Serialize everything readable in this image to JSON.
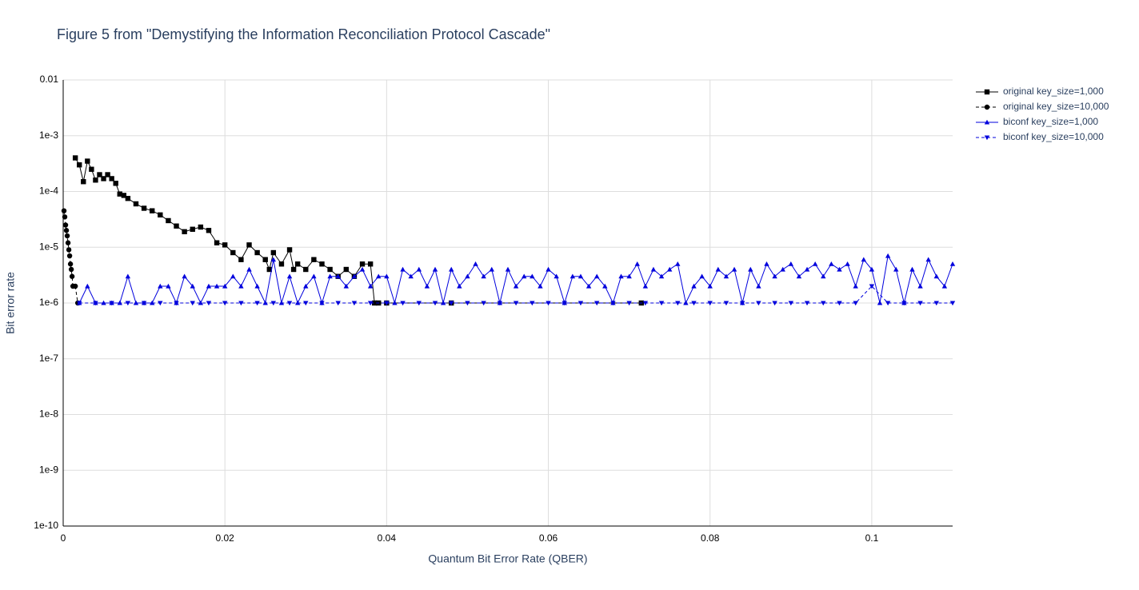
{
  "chart_data": {
    "type": "line",
    "title": "Figure 5 from \"Demystifying the Information Reconciliation Protocol Cascade\"",
    "xlabel": "Quantum Bit Error Rate (QBER)",
    "ylabel": "Bit error rate",
    "log_y": true,
    "grid": true,
    "legend": "outside-right",
    "xlim": [
      0,
      0.11
    ],
    "xticks": [
      0,
      0.02,
      0.04,
      0.06,
      0.08,
      0.1
    ],
    "ylim": [
      1e-10,
      0.01
    ],
    "yticks": [
      {
        "value": 1e-10,
        "label": "1e-10"
      },
      {
        "value": 1e-09,
        "label": "1e-9"
      },
      {
        "value": 1e-08,
        "label": "1e-8"
      },
      {
        "value": 1e-07,
        "label": "1e-7"
      },
      {
        "value": 1e-06,
        "label": "1e-6"
      },
      {
        "value": 1e-05,
        "label": "1e-5"
      },
      {
        "value": 0.0001,
        "label": "1e-4"
      },
      {
        "value": 0.001,
        "label": "1e-3"
      },
      0.01
    ],
    "series": [
      {
        "name": "original key_size=1,000",
        "color": "#000000",
        "dash": "solid",
        "marker": "square",
        "x": [
          0.0015,
          0.002,
          0.0025,
          0.003,
          0.0035,
          0.004,
          0.0045,
          0.005,
          0.0055,
          0.006,
          0.0065,
          0.007,
          0.0075,
          0.008,
          0.009,
          0.01,
          0.011,
          0.012,
          0.013,
          0.014,
          0.015,
          0.016,
          0.017,
          0.018,
          0.019,
          0.02,
          0.021,
          0.022,
          0.023,
          0.024,
          0.025,
          0.0255,
          0.026,
          0.027,
          0.028,
          0.0285,
          0.029,
          0.03,
          0.031,
          0.032,
          0.033,
          0.034,
          0.035,
          0.036,
          0.037,
          0.038,
          0.0385,
          0.039,
          0.04,
          0.048,
          0.0715
        ],
        "values": [
          0.0004,
          0.0003,
          0.00015,
          0.00035,
          0.00025,
          0.00016,
          0.0002,
          0.00017,
          0.0002,
          0.00017,
          0.00014,
          9e-05,
          8.5e-05,
          7.5e-05,
          6e-05,
          5e-05,
          4.5e-05,
          3.8e-05,
          3e-05,
          2.4e-05,
          1.9e-05,
          2.1e-05,
          2.3e-05,
          2e-05,
          1.2e-05,
          1.1e-05,
          8e-06,
          6e-06,
          1.1e-05,
          8e-06,
          6e-06,
          4e-06,
          8e-06,
          5e-06,
          9e-06,
          4e-06,
          5e-06,
          4e-06,
          6e-06,
          5e-06,
          4e-06,
          3e-06,
          4e-06,
          3e-06,
          5e-06,
          5e-06,
          1e-06,
          1e-06,
          1e-06,
          1e-06,
          1e-06
        ]
      },
      {
        "name": "original key_size=10,000",
        "color": "#000000",
        "dash": "dash",
        "marker": "circle",
        "x": [
          0.0001,
          0.0002,
          0.0003,
          0.0004,
          0.0005,
          0.0006,
          0.0007,
          0.0008,
          0.0009,
          0.001,
          0.0011,
          0.0012,
          0.0015,
          0.0018
        ],
        "values": [
          4.5e-05,
          3.5e-05,
          2.5e-05,
          2e-05,
          1.6e-05,
          1.2e-05,
          9e-06,
          7e-06,
          5e-06,
          4e-06,
          3e-06,
          2e-06,
          2e-06,
          1e-06
        ]
      },
      {
        "name": "biconf key_size=1,000",
        "color": "#0000dd",
        "dash": "solid",
        "marker": "triangle-up",
        "x": [
          0.002,
          0.003,
          0.004,
          0.005,
          0.006,
          0.007,
          0.008,
          0.009,
          0.01,
          0.011,
          0.012,
          0.013,
          0.014,
          0.015,
          0.016,
          0.017,
          0.018,
          0.019,
          0.02,
          0.021,
          0.022,
          0.023,
          0.024,
          0.025,
          0.026,
          0.027,
          0.028,
          0.029,
          0.03,
          0.031,
          0.032,
          0.033,
          0.034,
          0.035,
          0.036,
          0.037,
          0.038,
          0.039,
          0.04,
          0.041,
          0.042,
          0.043,
          0.044,
          0.045,
          0.046,
          0.047,
          0.048,
          0.049,
          0.05,
          0.051,
          0.052,
          0.053,
          0.054,
          0.055,
          0.056,
          0.057,
          0.058,
          0.059,
          0.06,
          0.061,
          0.062,
          0.063,
          0.064,
          0.065,
          0.066,
          0.067,
          0.068,
          0.069,
          0.07,
          0.071,
          0.072,
          0.073,
          0.074,
          0.075,
          0.076,
          0.077,
          0.078,
          0.079,
          0.08,
          0.081,
          0.082,
          0.083,
          0.084,
          0.085,
          0.086,
          0.087,
          0.088,
          0.089,
          0.09,
          0.091,
          0.092,
          0.093,
          0.094,
          0.095,
          0.096,
          0.097,
          0.098,
          0.099,
          0.1,
          0.101,
          0.102,
          0.103,
          0.104,
          0.105,
          0.106,
          0.107,
          0.108,
          0.109,
          0.11
        ],
        "values": [
          1e-06,
          2e-06,
          1e-06,
          1e-06,
          1e-06,
          1e-06,
          3e-06,
          1e-06,
          1e-06,
          1e-06,
          2e-06,
          2e-06,
          1e-06,
          3e-06,
          2e-06,
          1e-06,
          2e-06,
          2e-06,
          2e-06,
          3e-06,
          2e-06,
          4e-06,
          2e-06,
          1e-06,
          6e-06,
          1e-06,
          3e-06,
          1e-06,
          2e-06,
          3e-06,
          1e-06,
          3e-06,
          3e-06,
          2e-06,
          3e-06,
          4e-06,
          2e-06,
          3e-06,
          3e-06,
          1e-06,
          4e-06,
          3e-06,
          4e-06,
          2e-06,
          4e-06,
          1e-06,
          4e-06,
          2e-06,
          3e-06,
          5e-06,
          3e-06,
          4e-06,
          1e-06,
          4e-06,
          2e-06,
          3e-06,
          3e-06,
          2e-06,
          4e-06,
          3e-06,
          1e-06,
          3e-06,
          3e-06,
          2e-06,
          3e-06,
          2e-06,
          1e-06,
          3e-06,
          3e-06,
          5e-06,
          2e-06,
          4e-06,
          3e-06,
          4e-06,
          5e-06,
          1e-06,
          2e-06,
          3e-06,
          2e-06,
          4e-06,
          3e-06,
          4e-06,
          1e-06,
          4e-06,
          2e-06,
          5e-06,
          3e-06,
          4e-06,
          5e-06,
          3e-06,
          4e-06,
          5e-06,
          3e-06,
          5e-06,
          4e-06,
          5e-06,
          2e-06,
          6e-06,
          4e-06,
          1e-06,
          7e-06,
          4e-06,
          1e-06,
          4e-06,
          2e-06,
          6e-06,
          3e-06,
          2e-06,
          5e-06
        ]
      },
      {
        "name": "biconf key_size=10,000",
        "color": "#0000dd",
        "dash": "dash",
        "marker": "triangle-down",
        "x": [
          0.002,
          0.004,
          0.006,
          0.008,
          0.01,
          0.012,
          0.014,
          0.016,
          0.018,
          0.02,
          0.022,
          0.024,
          0.026,
          0.028,
          0.03,
          0.032,
          0.034,
          0.036,
          0.038,
          0.04,
          0.042,
          0.044,
          0.046,
          0.048,
          0.05,
          0.052,
          0.054,
          0.056,
          0.058,
          0.06,
          0.062,
          0.064,
          0.066,
          0.068,
          0.07,
          0.072,
          0.074,
          0.076,
          0.078,
          0.08,
          0.082,
          0.084,
          0.086,
          0.088,
          0.09,
          0.092,
          0.094,
          0.096,
          0.098,
          0.1,
          0.102,
          0.104,
          0.106,
          0.108,
          0.11
        ],
        "values": [
          1e-06,
          1e-06,
          1e-06,
          1e-06,
          1e-06,
          1e-06,
          1e-06,
          1e-06,
          1e-06,
          1e-06,
          1e-06,
          1e-06,
          1e-06,
          1e-06,
          1e-06,
          1e-06,
          1e-06,
          1e-06,
          1e-06,
          1e-06,
          1e-06,
          1e-06,
          1e-06,
          1e-06,
          1e-06,
          1e-06,
          1e-06,
          1e-06,
          1e-06,
          1e-06,
          1e-06,
          1e-06,
          1e-06,
          1e-06,
          1e-06,
          1e-06,
          1e-06,
          1e-06,
          1e-06,
          1e-06,
          1e-06,
          1e-06,
          1e-06,
          1e-06,
          1e-06,
          1e-06,
          1e-06,
          1e-06,
          1e-06,
          2e-06,
          1e-06,
          1e-06,
          1e-06,
          1e-06,
          1e-06
        ]
      }
    ]
  }
}
